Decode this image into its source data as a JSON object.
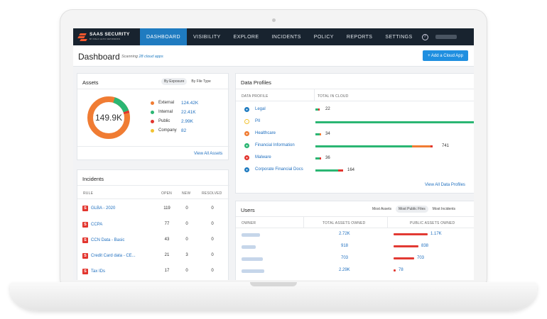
{
  "nav": {
    "logo_title": "SAAS SECURITY",
    "logo_sub": "BY PALO ALTO NETWORKS",
    "items": [
      "DASHBOARD",
      "VISIBILITY",
      "EXPLORE",
      "INCIDENTS",
      "POLICY",
      "REPORTS",
      "SETTINGS"
    ],
    "help": "?"
  },
  "header": {
    "title": "Dashboard",
    "scanning_prefix": "Scanning",
    "scanning_link": "28 cloud apps",
    "add_button": "+ Add a Cloud App"
  },
  "assets": {
    "title": "Assets",
    "toggle": [
      "By Exposure",
      "By File Type"
    ],
    "total": "149.9K",
    "legend": [
      {
        "label": "External",
        "value": "124.42K",
        "color": "#f07c33"
      },
      {
        "label": "Internal",
        "value": "22.41K",
        "color": "#2bb673"
      },
      {
        "label": "Public",
        "value": "2.99K",
        "color": "#e2352e"
      },
      {
        "label": "Company",
        "value": "82",
        "color": "#f2c230"
      }
    ],
    "view_all": "View All Assets"
  },
  "incidents": {
    "title": "Incidents",
    "columns": [
      "RULE",
      "OPEN",
      "NEW",
      "RESOLVED"
    ],
    "rows": [
      {
        "badge": "S",
        "rule": "GLBA - 2020",
        "open": "119",
        "new": "0",
        "resolved": "0"
      },
      {
        "badge": "S",
        "rule": "CCPA",
        "open": "77",
        "new": "0",
        "resolved": "0"
      },
      {
        "badge": "S",
        "rule": "CCN Data - Basic",
        "open": "43",
        "new": "0",
        "resolved": "0"
      },
      {
        "badge": "S",
        "rule": "Credit Card data - CE...",
        "open": "21",
        "new": "3",
        "resolved": "0"
      },
      {
        "badge": "S",
        "rule": "Tax IDs",
        "open": "17",
        "new": "0",
        "resolved": "0"
      }
    ]
  },
  "data_profiles": {
    "title": "Data Profiles",
    "columns": [
      "DATA PROFILE",
      "TOTAL IN CLOUD"
    ],
    "rows": [
      {
        "name": "Legal",
        "value": "22",
        "icon_color": "#1f7bc0",
        "bar": [
          0.02,
          0.01
        ]
      },
      {
        "name": "PII",
        "value": "",
        "icon_color": "#f2c230",
        "bar": [
          1.0,
          0
        ]
      },
      {
        "name": "Healthcare",
        "value": "34",
        "icon_color": "#f07c33",
        "bar": [
          0.03,
          0.01
        ]
      },
      {
        "name": "Financial Information",
        "value": "741",
        "icon_color": "#2bb673",
        "bar": [
          0.52,
          0.12
        ]
      },
      {
        "name": "Malware",
        "value": "36",
        "icon_color": "#e2352e",
        "bar": [
          0.03,
          0.01
        ]
      },
      {
        "name": "Corporate Financial Docs",
        "value": "164",
        "icon_color": "#1f7bc0",
        "bar": [
          0.12,
          0.04
        ]
      }
    ],
    "view_all": "View All Data Profiles"
  },
  "users": {
    "title": "Users",
    "toggle": [
      "Most Assets",
      "Most Public Files",
      "Most Incidents"
    ],
    "columns": [
      "OWNER",
      "TOTAL ASSETS OWNED",
      "PUBLIC ASSETS OWNED"
    ],
    "rows": [
      {
        "total": "2.72K",
        "public": "1.17K",
        "public_frac": 1.0
      },
      {
        "total": "918",
        "public": "838",
        "public_frac": 0.72
      },
      {
        "total": "703",
        "public": "703",
        "public_frac": 0.6
      },
      {
        "total": "2.29K",
        "public": "78",
        "public_frac": 0.05
      }
    ]
  }
}
